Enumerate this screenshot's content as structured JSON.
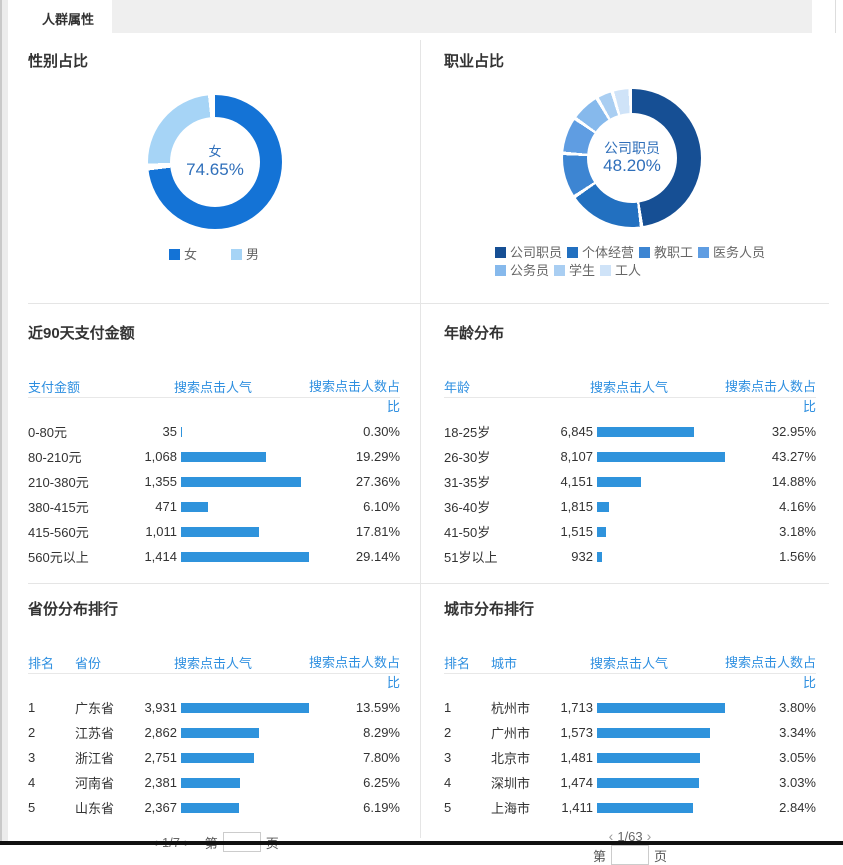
{
  "page": {
    "tab_title": "人群属性"
  },
  "colors": {
    "accent_blue": "#2e8fe0",
    "bar_blue": "#2f93dc",
    "center_text": "#2f6fba",
    "gender": [
      "#1473d6",
      "#a6d4f6"
    ],
    "occupation": [
      "#164f94",
      "#2270c0",
      "#3d85d2",
      "#5f9de2",
      "#86b9ec",
      "#a9cef2",
      "#cfe3f8"
    ]
  },
  "panels": {
    "gender": {
      "title": "性别占比",
      "center_label": "女",
      "center_value": "74.65%",
      "gap_deg": 6,
      "segments": [
        {
          "label": "女",
          "pct": 74.65,
          "color": "#1473d6"
        },
        {
          "label": "男",
          "pct": 25.35,
          "color": "#a6d4f6"
        }
      ]
    },
    "occupation": {
      "title": "职业占比",
      "center_label": "公司职员",
      "center_value": "48.20%",
      "gap_deg": 3,
      "segments": [
        {
          "label": "公司职员",
          "pct": 48.2,
          "color": "#164f94"
        },
        {
          "label": "个体经营",
          "pct": 17.8,
          "color": "#2270c0"
        },
        {
          "label": "教职工",
          "pct": 10.5,
          "color": "#3d85d2"
        },
        {
          "label": "医务人员",
          "pct": 8.6,
          "color": "#5f9de2"
        },
        {
          "label": "公务员",
          "pct": 6.9,
          "color": "#86b9ec"
        },
        {
          "label": "学生",
          "pct": 3.8,
          "color": "#a9cef2"
        },
        {
          "label": "工人",
          "pct": 4.2,
          "color": "#cfe3f8"
        }
      ]
    }
  },
  "tables": {
    "payment": {
      "title": "近90天支付金额",
      "columns": [
        "支付金额",
        "搜索点击人气",
        "搜索点击人数占比"
      ],
      "rows": [
        {
          "label": "0-80元",
          "value": "35",
          "pct": "0.30%",
          "pct_num": 0.3
        },
        {
          "label": "80-210元",
          "value": "1,068",
          "pct": "19.29%",
          "pct_num": 19.29
        },
        {
          "label": "210-380元",
          "value": "1,355",
          "pct": "27.36%",
          "pct_num": 27.36
        },
        {
          "label": "380-415元",
          "value": "471",
          "pct": "6.10%",
          "pct_num": 6.1
        },
        {
          "label": "415-560元",
          "value": "1,011",
          "pct": "17.81%",
          "pct_num": 17.81
        },
        {
          "label": "560元以上",
          "value": "1,414",
          "pct": "29.14%",
          "pct_num": 29.14
        }
      ]
    },
    "age": {
      "title": "年龄分布",
      "columns": [
        "年龄",
        "搜索点击人气",
        "搜索点击人数占比"
      ],
      "rows": [
        {
          "label": "18-25岁",
          "value": "6,845",
          "pct": "32.95%",
          "pct_num": 32.95
        },
        {
          "label": "26-30岁",
          "value": "8,107",
          "pct": "43.27%",
          "pct_num": 43.27
        },
        {
          "label": "31-35岁",
          "value": "4,151",
          "pct": "14.88%",
          "pct_num": 14.88
        },
        {
          "label": "36-40岁",
          "value": "1,815",
          "pct": "4.16%",
          "pct_num": 4.16
        },
        {
          "label": "41-50岁",
          "value": "1,515",
          "pct": "3.18%",
          "pct_num": 3.18
        },
        {
          "label": "51岁以上",
          "value": "932",
          "pct": "1.56%",
          "pct_num": 1.56
        }
      ]
    },
    "province": {
      "title": "省份分布排行",
      "columns": [
        "排名",
        "省份",
        "搜索点击人气",
        "搜索点击人数占比"
      ],
      "rows": [
        {
          "rank": "1",
          "label": "广东省",
          "value": "3,931",
          "pct": "13.59%",
          "pct_num": 13.59
        },
        {
          "rank": "2",
          "label": "江苏省",
          "value": "2,862",
          "pct": "8.29%",
          "pct_num": 8.29
        },
        {
          "rank": "3",
          "label": "浙江省",
          "value": "2,751",
          "pct": "7.80%",
          "pct_num": 7.8
        },
        {
          "rank": "4",
          "label": "河南省",
          "value": "2,381",
          "pct": "6.25%",
          "pct_num": 6.25
        },
        {
          "rank": "5",
          "label": "山东省",
          "value": "2,367",
          "pct": "6.19%",
          "pct_num": 6.19
        }
      ],
      "pagination": {
        "prev": "‹",
        "info": "1/7",
        "next": "›",
        "jump_prefix": "第",
        "jump_suffix": "页",
        "input_value": ""
      }
    },
    "city": {
      "title": "城市分布排行",
      "columns": [
        "排名",
        "城市",
        "搜索点击人气",
        "搜索点击人数占比"
      ],
      "rows": [
        {
          "rank": "1",
          "label": "杭州市",
          "value": "1,713",
          "pct": "3.80%",
          "pct_num": 3.8
        },
        {
          "rank": "2",
          "label": "广州市",
          "value": "1,573",
          "pct": "3.34%",
          "pct_num": 3.34
        },
        {
          "rank": "3",
          "label": "北京市",
          "value": "1,481",
          "pct": "3.05%",
          "pct_num": 3.05
        },
        {
          "rank": "4",
          "label": "深圳市",
          "value": "1,474",
          "pct": "3.03%",
          "pct_num": 3.03
        },
        {
          "rank": "5",
          "label": "上海市",
          "value": "1,411",
          "pct": "2.84%",
          "pct_num": 2.84
        }
      ],
      "pagination": {
        "prev": "‹",
        "info": "1/63",
        "next": "›",
        "jump_prefix": "第",
        "jump_suffix": "页",
        "input_value": ""
      }
    }
  },
  "chart_data": [
    {
      "type": "pie",
      "title": "性别占比",
      "labels": [
        "女",
        "男"
      ],
      "values": [
        74.65,
        25.35
      ],
      "colors": [
        "#1473d6",
        "#a6d4f6"
      ],
      "center_text": "女 74.65%",
      "legend_position": "bottom"
    },
    {
      "type": "pie",
      "title": "职业占比",
      "labels": [
        "公司职员",
        "个体经营",
        "教职工",
        "医务人员",
        "公务员",
        "学生",
        "工人"
      ],
      "values": [
        48.2,
        17.8,
        10.5,
        8.6,
        6.9,
        3.8,
        4.2
      ],
      "colors": [
        "#164f94",
        "#2270c0",
        "#3d85d2",
        "#5f9de2",
        "#86b9ec",
        "#a9cef2",
        "#cfe3f8"
      ],
      "center_text": "公司职员 48.20%",
      "legend_position": "bottom"
    },
    {
      "type": "bar",
      "title": "近90天支付金额",
      "categories": [
        "0-80元",
        "80-210元",
        "210-380元",
        "380-415元",
        "415-560元",
        "560元以上"
      ],
      "series": [
        {
          "name": "搜索点击人气",
          "values": [
            35,
            1068,
            1355,
            471,
            1011,
            1414
          ]
        },
        {
          "name": "搜索点击人数占比",
          "values": [
            0.3,
            19.29,
            27.36,
            6.1,
            17.81,
            29.14
          ]
        }
      ]
    },
    {
      "type": "bar",
      "title": "年龄分布",
      "categories": [
        "18-25岁",
        "26-30岁",
        "31-35岁",
        "36-40岁",
        "41-50岁",
        "51岁以上"
      ],
      "series": [
        {
          "name": "搜索点击人气",
          "values": [
            6845,
            8107,
            4151,
            1815,
            1515,
            932
          ]
        },
        {
          "name": "搜索点击人数占比",
          "values": [
            32.95,
            43.27,
            14.88,
            4.16,
            3.18,
            1.56
          ]
        }
      ]
    },
    {
      "type": "bar",
      "title": "省份分布排行",
      "categories": [
        "广东省",
        "江苏省",
        "浙江省",
        "河南省",
        "山东省"
      ],
      "series": [
        {
          "name": "搜索点击人气",
          "values": [
            3931,
            2862,
            2751,
            2381,
            2367
          ]
        },
        {
          "name": "搜索点击人数占比",
          "values": [
            13.59,
            8.29,
            7.8,
            6.25,
            6.19
          ]
        }
      ]
    },
    {
      "type": "bar",
      "title": "城市分布排行",
      "categories": [
        "杭州市",
        "广州市",
        "北京市",
        "深圳市",
        "上海市"
      ],
      "series": [
        {
          "name": "搜索点击人气",
          "values": [
            1713,
            1573,
            1481,
            1474,
            1411
          ]
        },
        {
          "name": "搜索点击人数占比",
          "values": [
            3.8,
            3.34,
            3.05,
            3.03,
            2.84
          ]
        }
      ]
    }
  ]
}
